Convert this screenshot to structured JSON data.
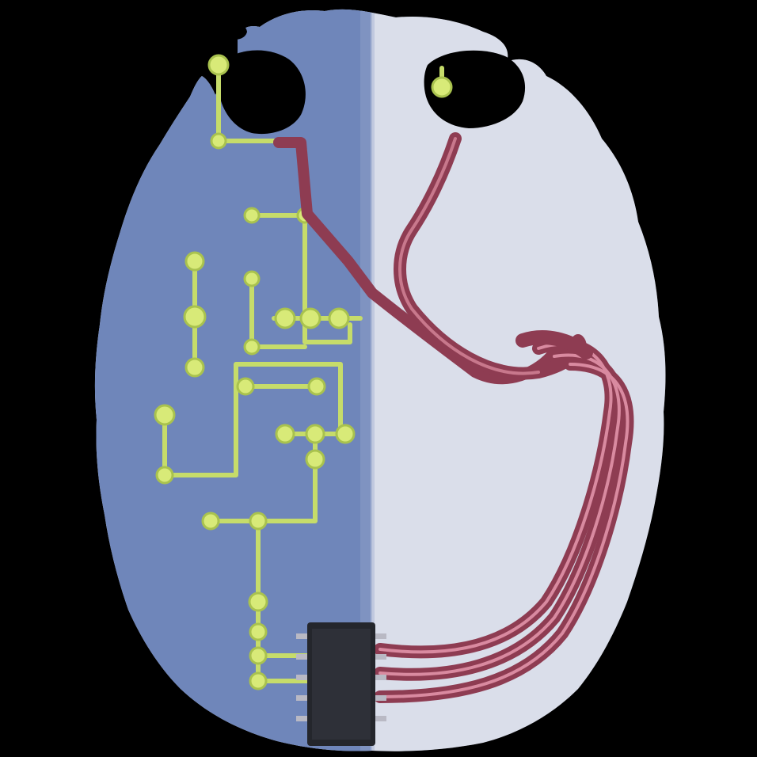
{
  "image": {
    "subject": "brain-circuit-logo",
    "colors": {
      "background": "#000000",
      "left_hemisphere": "#6f86ba",
      "right_hemisphere": "#d5dae8",
      "circuit_trace": "#c6dc6a",
      "circuit_node": "#d8ea78",
      "wire": "#8e3c52",
      "wire_highlight": "#d98aa0",
      "chip": "#24262c"
    },
    "icons": [
      "brain-icon",
      "circuit-board-icon",
      "microchip-icon",
      "wire-bundle-icon"
    ]
  }
}
